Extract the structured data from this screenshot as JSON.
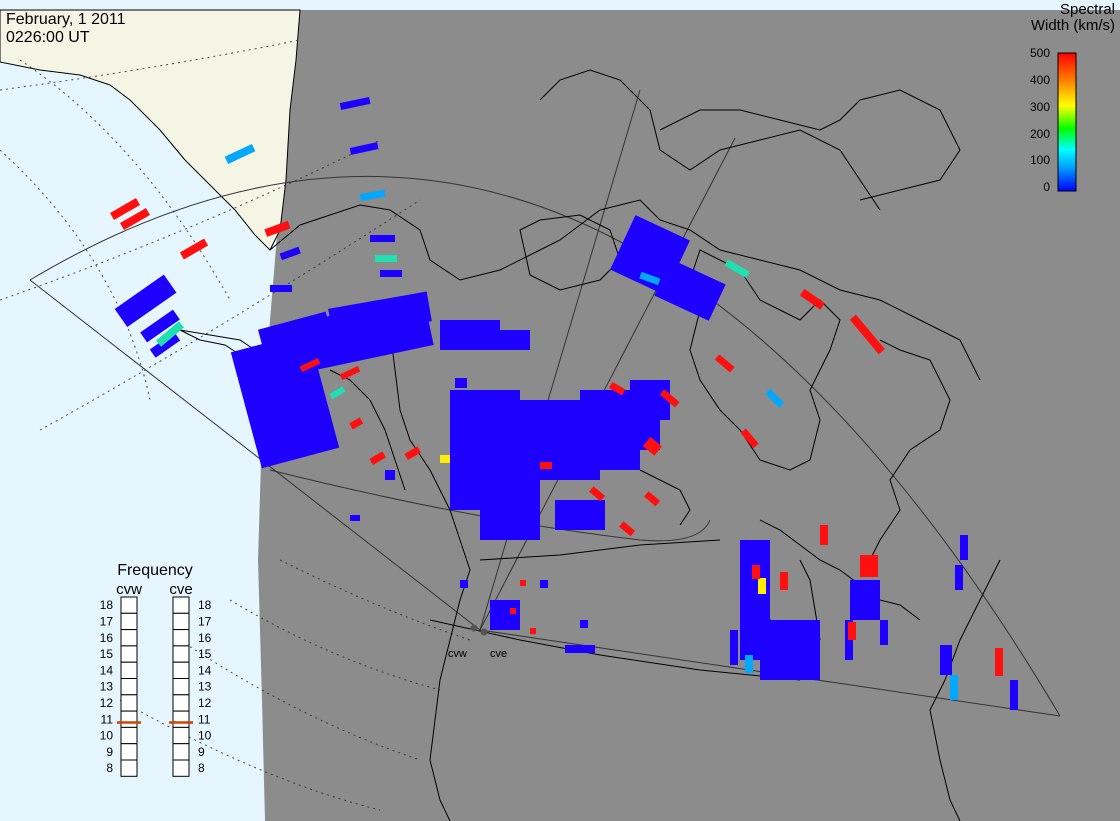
{
  "header": {
    "date": "February, 1 2011",
    "time": "0226:00 UT"
  },
  "colorbar": {
    "title_line1": "Spectral",
    "title_line2": "Width (km/s)",
    "ticks": [
      "500",
      "400",
      "300",
      "200",
      "100",
      "0"
    ],
    "range": [
      0,
      500
    ],
    "gradient": [
      "#0000ff",
      "#00a0ff",
      "#00ffff",
      "#00ff00",
      "#ffff00",
      "#ff8000",
      "#ff0000"
    ]
  },
  "frequency": {
    "title": "Frequency",
    "ticks": [
      "18",
      "17",
      "16",
      "15",
      "14",
      "13",
      "12",
      "11",
      "10",
      "9",
      "8"
    ],
    "range_mhz": [
      8,
      18
    ],
    "radars": [
      {
        "name": "cvw",
        "value_mhz": 10.8
      },
      {
        "name": "cve",
        "value_mhz": 10.8
      }
    ],
    "marker_color": "#cc4400"
  },
  "sites": [
    {
      "name": "cvw"
    },
    {
      "name": "cve"
    }
  ],
  "colors": {
    "night": "#8c8c8c",
    "ocean": "#e6f6ff",
    "land_day": "#f5f5e6",
    "coast": "#000000",
    "fov": "#333333",
    "echo_low": "#1e00ff",
    "echo_mid": "#00c0ff",
    "echo_teal": "#20e0b0",
    "echo_yellow": "#ffee00",
    "echo_high": "#ff1010"
  }
}
